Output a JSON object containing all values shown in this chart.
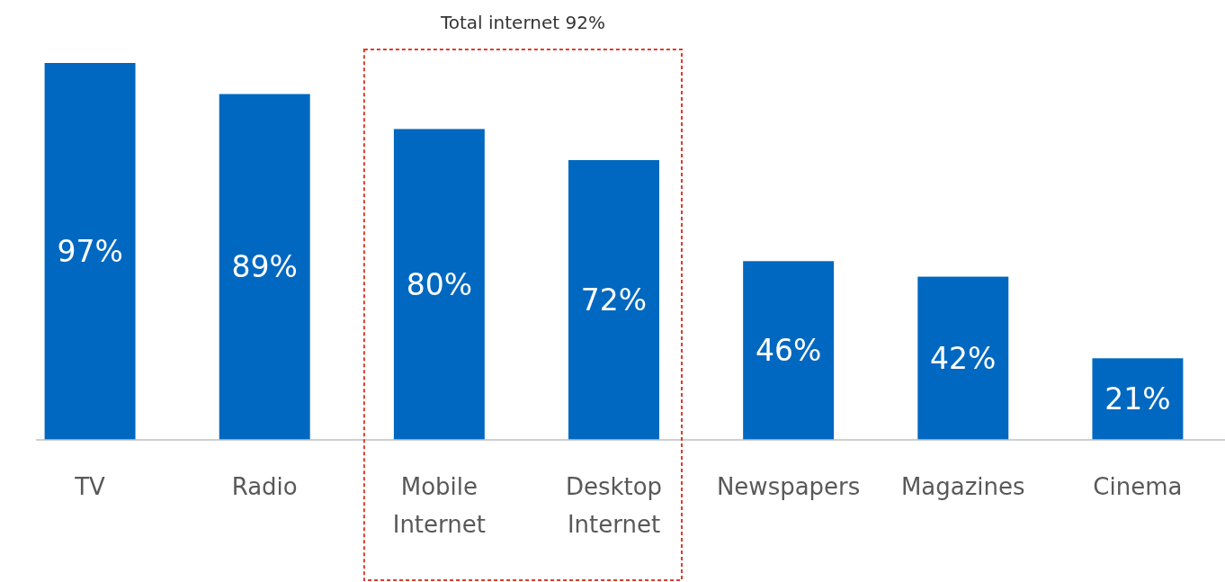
{
  "chart_data": {
    "type": "bar",
    "categories": [
      "TV",
      "Radio",
      "Mobile Internet",
      "Desktop Internet",
      "Newspapers",
      "Magazines",
      "Cinema"
    ],
    "values": [
      97,
      89,
      80,
      72,
      46,
      42,
      21
    ],
    "color": "#0068c0",
    "value_labels": [
      "97%",
      "89%",
      "80%",
      "72%",
      "46%",
      "42%",
      "21%"
    ],
    "annotations": [
      "Total internet 92%"
    ]
  }
}
